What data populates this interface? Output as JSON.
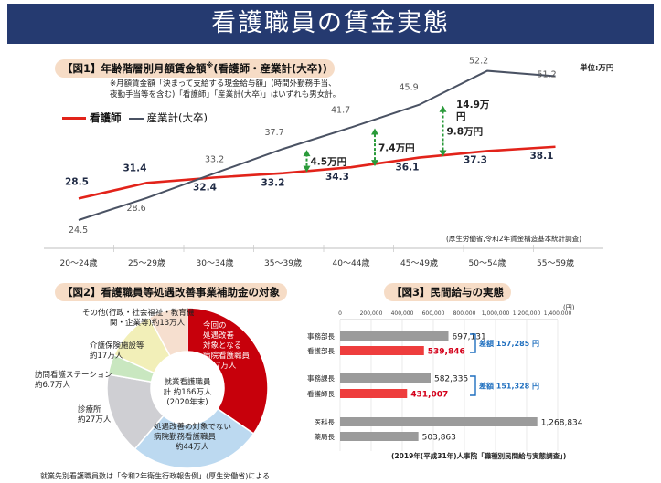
{
  "title": "看護職員の賃金実態",
  "fig1": {
    "tag": "【図1】年齢階層別月額賃金額",
    "tag_sup": "※",
    "tag_suffix": "(看護師・産業計(大卒))",
    "note1": "※月額賃金額「決まって支給する現金給与額」(時間外勤務手当、",
    "note2": "夜勤手当等を含む)「看護師」「産業計(大卒)」はいずれも男女計。",
    "legend_nurse": "看護師",
    "legend_industry": "産業計(大卒)",
    "unit": "単位:万円",
    "source": "(厚生労働省,令和2年賃金構造基本統計調査)"
  },
  "chart_data": [
    {
      "type": "line",
      "x": [
        "20〜24歳",
        "25〜29歳",
        "30〜34歳",
        "35〜39歳",
        "40〜44歳",
        "45〜49歳",
        "50〜54歳",
        "55〜59歳"
      ],
      "series": [
        {
          "name": "看護師",
          "values": [
            28.5,
            31.4,
            32.4,
            33.2,
            34.3,
            36.1,
            37.3,
            38.1
          ],
          "color": "#e2231a"
        },
        {
          "name": "産業計(大卒)",
          "values": [
            24.5,
            28.6,
            33.2,
            37.7,
            41.7,
            45.9,
            52.2,
            51.2
          ],
          "color": "#4a5263"
        }
      ],
      "annotations": [
        "4.5万円",
        "7.4万円",
        "9.8万円",
        "14.9万円"
      ],
      "ylabel": "単位:万円"
    },
    {
      "type": "pie",
      "labels": [
        "今回の処遇改善対象となる病院看護職員",
        "処遇改善の対象でない病院勤務看護職員",
        "診療所",
        "訪問看護ステーション",
        "介護保険施設等",
        "その他(行政・社会福祉・教育機関・企業等)"
      ],
      "values": [
        57,
        44,
        27,
        6.7,
        17,
        13
      ],
      "center": "就業看護職員計 約166万人 (2020年末)"
    },
    {
      "type": "bar",
      "categories": [
        "事務部長",
        "看護部長",
        "事務課長",
        "看護師長",
        "医科長",
        "薬局長"
      ],
      "values": [
        697131,
        539846,
        582335,
        431007,
        1268834,
        503863
      ],
      "xlim": [
        0,
        1400000
      ],
      "ticks": [
        "0",
        "200,000",
        "400,000",
        "600,000",
        "800,000",
        "1,000,000",
        "1,200,000",
        "1,400,000"
      ],
      "unit": "(円)",
      "diffs": [
        "差額 157,285 円",
        "差額 151,328 円"
      ]
    }
  ],
  "fig2": {
    "tag": "【図2】看護職員等処遇改善事業補助金の対象",
    "pie_labels": [
      {
        "l1": "今回の",
        "l2": "処遇改善",
        "l3": "対象となる",
        "l4": "病院看護職員",
        "l5": "約57万人"
      },
      {
        "l1": "処遇改善の対象でない",
        "l2": "病院勤務看護職員",
        "l3": "約44万人"
      }
    ],
    "clinic_1": "診療所",
    "clinic_2": "約27万人",
    "visit_1": "訪問看護ステーション",
    "visit_2": "約6.7万人",
    "care_1": "介護保険施設等",
    "care_2": "約17万人",
    "other_1": "その他(行政・社会福祉・教育機",
    "other_2": "関・企業等)約13万人",
    "center_1": "就業看護職員",
    "center_2": "計 約166万人",
    "center_3": "(2020年末)",
    "footnote": "就業先別看護職員数は「令和2年衛生行政報告例」(厚生労働省)による"
  },
  "fig3": {
    "tag": "【図3】民間給与の実態",
    "source": "(2019年(平成31年)人事院「職種別民間給与実態調査」)"
  }
}
